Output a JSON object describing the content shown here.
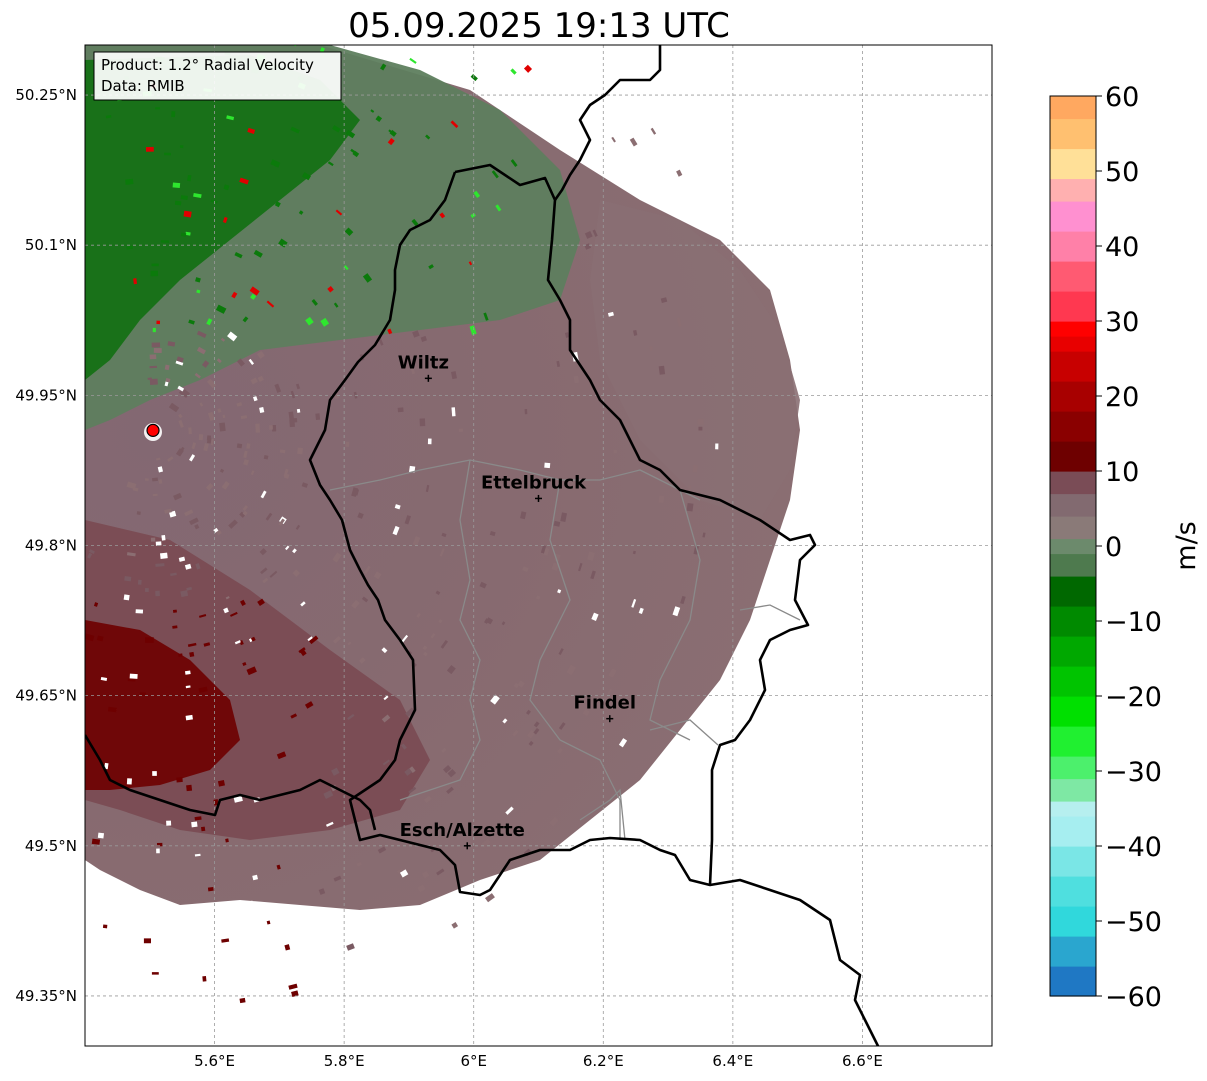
{
  "title": "05.09.2025 19:13 UTC",
  "info_box": {
    "product": "Product: 1.2° Radial Velocity",
    "data": "Data: RMIB"
  },
  "axes": {
    "lat_ticks": [
      {
        "value": 50.25,
        "label": "50.25°N"
      },
      {
        "value": 50.1,
        "label": "50.1°N"
      },
      {
        "value": 49.95,
        "label": "49.95°N"
      },
      {
        "value": 49.8,
        "label": "49.8°N"
      },
      {
        "value": 49.65,
        "label": "49.65°N"
      },
      {
        "value": 49.5,
        "label": "49.5°N"
      },
      {
        "value": 49.35,
        "label": "49.35°N"
      }
    ],
    "lon_ticks": [
      {
        "value": 5.6,
        "label": "5.6°E"
      },
      {
        "value": 5.8,
        "label": "5.8°E"
      },
      {
        "value": 6.0,
        "label": "6°E"
      },
      {
        "value": 6.2,
        "label": "6.2°E"
      },
      {
        "value": 6.4,
        "label": "6.4°E"
      },
      {
        "value": 6.6,
        "label": "6.6°E"
      }
    ],
    "lon_range": [
      5.4,
      6.8
    ],
    "lat_range": [
      49.3,
      50.3
    ],
    "grid": true
  },
  "cities": [
    {
      "name": "Wiltz",
      "lon": 5.93,
      "lat": 49.967
    },
    {
      "name": "Ettelbruck",
      "lon": 6.1,
      "lat": 49.847
    },
    {
      "name": "Findel",
      "lon": 6.21,
      "lat": 49.627
    },
    {
      "name": "Esch/Alzette",
      "lon": 5.99,
      "lat": 49.5
    }
  ],
  "radar_site": {
    "lon": 5.505,
    "lat": 49.915,
    "color": "#ff0000"
  },
  "colorbar": {
    "label": "m/s",
    "min": -60,
    "max": 60,
    "ticks": [
      {
        "value": 60,
        "label": "60"
      },
      {
        "value": 50,
        "label": "50"
      },
      {
        "value": 40,
        "label": "40"
      },
      {
        "value": 30,
        "label": "30"
      },
      {
        "value": 20,
        "label": "20"
      },
      {
        "value": 10,
        "label": "10"
      },
      {
        "value": 0,
        "label": "0"
      },
      {
        "value": -10,
        "label": "−10"
      },
      {
        "value": -20,
        "label": "−20"
      },
      {
        "value": -30,
        "label": "−30"
      },
      {
        "value": -40,
        "label": "−40"
      },
      {
        "value": -50,
        "label": "−50"
      },
      {
        "value": -60,
        "label": "−60"
      }
    ],
    "stops": [
      {
        "v": -60,
        "c": "#1f78c4"
      },
      {
        "v": -56,
        "c": "#2aa6cf"
      },
      {
        "v": -52,
        "c": "#30d8dc"
      },
      {
        "v": -48,
        "c": "#4fdfdf"
      },
      {
        "v": -44,
        "c": "#7ae6e6"
      },
      {
        "v": -40,
        "c": "#a6eef0"
      },
      {
        "v": -36,
        "c": "#b6efef"
      },
      {
        "v": -34,
        "c": "#7ee8a4"
      },
      {
        "v": -31,
        "c": "#4cf06c"
      },
      {
        "v": -28,
        "c": "#20f030"
      },
      {
        "v": -24,
        "c": "#00e000"
      },
      {
        "v": -20,
        "c": "#00c400"
      },
      {
        "v": -16,
        "c": "#00a800"
      },
      {
        "v": -12,
        "c": "#008a00"
      },
      {
        "v": -8,
        "c": "#006800"
      },
      {
        "v": -4,
        "c": "#4e7a4e"
      },
      {
        "v": -1,
        "c": "#6c8a6c"
      },
      {
        "v": 1,
        "c": "#8a7a78"
      },
      {
        "v": 4,
        "c": "#826a70"
      },
      {
        "v": 7,
        "c": "#7a4c56"
      },
      {
        "v": 10,
        "c": "#6e0000"
      },
      {
        "v": 14,
        "c": "#8a0000"
      },
      {
        "v": 18,
        "c": "#a80000"
      },
      {
        "v": 22,
        "c": "#c80000"
      },
      {
        "v": 26,
        "c": "#e80000"
      },
      {
        "v": 28,
        "c": "#ff0000"
      },
      {
        "v": 30,
        "c": "#ff3850"
      },
      {
        "v": 34,
        "c": "#ff5a72"
      },
      {
        "v": 38,
        "c": "#ff80a8"
      },
      {
        "v": 42,
        "c": "#ff90d0"
      },
      {
        "v": 46,
        "c": "#ffb0b0"
      },
      {
        "v": 49,
        "c": "#ffe098"
      },
      {
        "v": 53,
        "c": "#ffc070"
      },
      {
        "v": 57,
        "c": "#ffa860"
      },
      {
        "v": 60,
        "c": "#ff9a50"
      }
    ]
  },
  "field_colors": {
    "outbound": "#7a4c56",
    "near_zero": "#876a70",
    "inbound": "#5a7a5a",
    "strong_in": "#006800",
    "strong_out": "#6e0000"
  }
}
